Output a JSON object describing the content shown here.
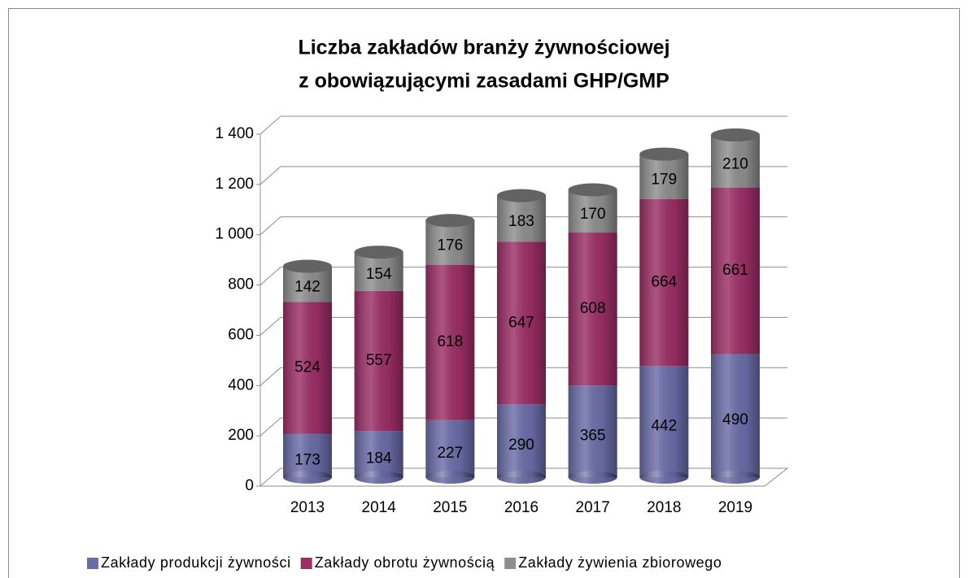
{
  "chart_data": {
    "type": "bar",
    "stacked": true,
    "shape": "cylinder",
    "title": [
      "Liczba zakładów branży żywnościowej",
      "z obowiązującymi zasadami GHP/GMP"
    ],
    "categories": [
      "2013",
      "2014",
      "2015",
      "2016",
      "2017",
      "2018",
      "2019"
    ],
    "series": [
      {
        "name": "Zakłady produkcji żywności",
        "color": "#6a6ca8",
        "values": [
          173,
          184,
          227,
          290,
          365,
          442,
          490
        ]
      },
      {
        "name": "Zakłady obrotu żywnością",
        "color": "#9c2e66",
        "values": [
          524,
          557,
          618,
          647,
          608,
          664,
          661
        ]
      },
      {
        "name": "Zakłady żywienia zbiorowego",
        "color": "#8e8e8e",
        "values": [
          142,
          154,
          176,
          183,
          170,
          179,
          210
        ]
      }
    ],
    "ylim": [
      0,
      1400
    ],
    "yticks": [
      0,
      200,
      400,
      600,
      800,
      {
        "value": 1000,
        "label": "1 000"
      },
      {
        "value": 1200,
        "label": "1 200"
      },
      {
        "value": 1400,
        "label": "1 400"
      }
    ],
    "grid": true,
    "legend": "bottom"
  }
}
